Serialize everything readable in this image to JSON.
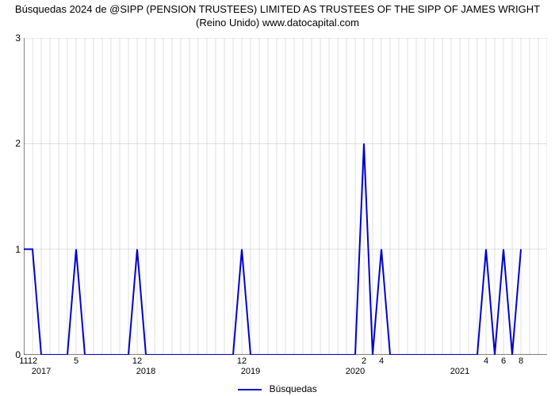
{
  "title_line1": "Búsquedas 2024 de @SIPP (PENSION TRUSTEES) LIMITED AS TRUSTEES OF THE SIPP OF JAMES WRIGHT",
  "title_line2": "(Reino Unido) www.datocapital.com",
  "legend_label": "Búsquedas",
  "chart": {
    "type": "line",
    "line_color": "#0000cc",
    "line_width": 2,
    "grid_color": "#c0c0c0",
    "grid_width": 0.5,
    "background_color": "#ffffff",
    "axis_color": "#000000",
    "tick_fontsize": 11,
    "y": {
      "min": 0,
      "max": 3,
      "ticks": [
        0,
        1,
        2,
        3
      ]
    },
    "x": {
      "min": 0,
      "max": 60,
      "month_ticks": [
        {
          "pos": 0,
          "label": "11"
        },
        {
          "pos": 1,
          "label": "12"
        },
        {
          "pos": 6,
          "label": "5"
        },
        {
          "pos": 13,
          "label": "12"
        },
        {
          "pos": 25,
          "label": "12"
        },
        {
          "pos": 39,
          "label": "2"
        },
        {
          "pos": 41,
          "label": "4"
        },
        {
          "pos": 53,
          "label": "4"
        },
        {
          "pos": 55,
          "label": "6"
        },
        {
          "pos": 57,
          "label": "8"
        }
      ],
      "year_ticks": [
        {
          "pos": 2,
          "label": "2017"
        },
        {
          "pos": 14,
          "label": "2018"
        },
        {
          "pos": 26,
          "label": "2019"
        },
        {
          "pos": 38,
          "label": "2020"
        },
        {
          "pos": 50,
          "label": "2021"
        }
      ]
    },
    "series": [
      {
        "x": 0,
        "y": 1
      },
      {
        "x": 1,
        "y": 1
      },
      {
        "x": 2,
        "y": 0
      },
      {
        "x": 3,
        "y": 0
      },
      {
        "x": 4,
        "y": 0
      },
      {
        "x": 5,
        "y": 0
      },
      {
        "x": 6,
        "y": 1
      },
      {
        "x": 7,
        "y": 0
      },
      {
        "x": 8,
        "y": 0
      },
      {
        "x": 9,
        "y": 0
      },
      {
        "x": 10,
        "y": 0
      },
      {
        "x": 11,
        "y": 0
      },
      {
        "x": 12,
        "y": 0
      },
      {
        "x": 13,
        "y": 1
      },
      {
        "x": 14,
        "y": 0
      },
      {
        "x": 15,
        "y": 0
      },
      {
        "x": 16,
        "y": 0
      },
      {
        "x": 17,
        "y": 0
      },
      {
        "x": 18,
        "y": 0
      },
      {
        "x": 19,
        "y": 0
      },
      {
        "x": 20,
        "y": 0
      },
      {
        "x": 21,
        "y": 0
      },
      {
        "x": 22,
        "y": 0
      },
      {
        "x": 23,
        "y": 0
      },
      {
        "x": 24,
        "y": 0
      },
      {
        "x": 25,
        "y": 1
      },
      {
        "x": 26,
        "y": 0
      },
      {
        "x": 27,
        "y": 0
      },
      {
        "x": 28,
        "y": 0
      },
      {
        "x": 29,
        "y": 0
      },
      {
        "x": 30,
        "y": 0
      },
      {
        "x": 31,
        "y": 0
      },
      {
        "x": 32,
        "y": 0
      },
      {
        "x": 33,
        "y": 0
      },
      {
        "x": 34,
        "y": 0
      },
      {
        "x": 35,
        "y": 0
      },
      {
        "x": 36,
        "y": 0
      },
      {
        "x": 37,
        "y": 0
      },
      {
        "x": 38,
        "y": 0
      },
      {
        "x": 39,
        "y": 2
      },
      {
        "x": 40,
        "y": 0
      },
      {
        "x": 41,
        "y": 1
      },
      {
        "x": 42,
        "y": 0
      },
      {
        "x": 43,
        "y": 0
      },
      {
        "x": 44,
        "y": 0
      },
      {
        "x": 45,
        "y": 0
      },
      {
        "x": 46,
        "y": 0
      },
      {
        "x": 47,
        "y": 0
      },
      {
        "x": 48,
        "y": 0
      },
      {
        "x": 49,
        "y": 0
      },
      {
        "x": 50,
        "y": 0
      },
      {
        "x": 51,
        "y": 0
      },
      {
        "x": 52,
        "y": 0
      },
      {
        "x": 53,
        "y": 1
      },
      {
        "x": 54,
        "y": 0
      },
      {
        "x": 55,
        "y": 1
      },
      {
        "x": 56,
        "y": 0
      },
      {
        "x": 57,
        "y": 1
      }
    ]
  }
}
